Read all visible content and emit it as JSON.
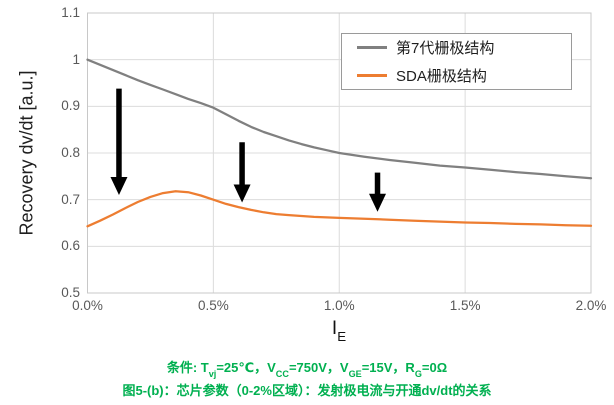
{
  "figure": {
    "y_axis": {
      "title": "Recovery dv/dt [a.u.]",
      "ticks": [
        {
          "label": "1.1",
          "value": 1.1
        },
        {
          "label": "1",
          "value": 1.0
        },
        {
          "label": "0.9",
          "value": 0.9
        },
        {
          "label": "0.8",
          "value": 0.8
        },
        {
          "label": "0.7",
          "value": 0.7
        },
        {
          "label": "0.6",
          "value": 0.6
        },
        {
          "label": "0.5",
          "value": 0.5
        }
      ]
    },
    "x_axis": {
      "title_segments": [
        {
          "t": "I"
        },
        {
          "s": "E"
        }
      ],
      "ticks": [
        {
          "label": "0.0%",
          "value": 0
        },
        {
          "label": "0.5%",
          "value": 0.5
        },
        {
          "label": "1.0%",
          "value": 1.0
        },
        {
          "label": "1.5%",
          "value": 1.5
        },
        {
          "label": "2.0%",
          "value": 2.0
        }
      ]
    },
    "legend": {
      "items": [
        {
          "label": "第7代栅极结构",
          "color": "#808080"
        },
        {
          "label": "SDA栅极结构",
          "color": "#ED7D31"
        }
      ]
    },
    "captions": {
      "conditions_segments": [
        {
          "t": "条件: T"
        },
        {
          "s": "vj"
        },
        {
          "t": "=25℃，V"
        },
        {
          "s": "CC"
        },
        {
          "t": "=750V，V"
        },
        {
          "s": "GE"
        },
        {
          "t": "=15V，R"
        },
        {
          "s": "G"
        },
        {
          "t": "=0Ω"
        }
      ],
      "figure_title": "图5-(b)：芯片参数（0-2%区域）：发射极电流与开通dv/dt的关系",
      "color": "#00B050"
    },
    "colors": {
      "grid": "#DCDCDC",
      "border": "#C8C8C8",
      "arrow": "#000000"
    }
  },
  "chart_data": {
    "type": "line",
    "title": "",
    "xlabel": "IE",
    "ylabel": "Recovery dv/dt [a.u.]",
    "xlim": [
      0,
      2
    ],
    "ylim": [
      0.5,
      1.1
    ],
    "x_unit": "%",
    "grid": true,
    "legend_position": "top-right",
    "x": [
      0,
      0.05,
      0.1,
      0.15,
      0.2,
      0.25,
      0.3,
      0.35,
      0.4,
      0.45,
      0.5,
      0.55,
      0.6,
      0.65,
      0.7,
      0.75,
      0.8,
      0.85,
      0.9,
      0.95,
      1.0,
      1.1,
      1.2,
      1.3,
      1.4,
      1.5,
      1.6,
      1.7,
      1.8,
      1.9,
      2.0
    ],
    "series": [
      {
        "name": "第7代栅极结构",
        "color": "#808080",
        "values": [
          1.0,
          0.989,
          0.978,
          0.967,
          0.956,
          0.946,
          0.936,
          0.926,
          0.916,
          0.907,
          0.897,
          0.883,
          0.869,
          0.856,
          0.845,
          0.836,
          0.827,
          0.819,
          0.812,
          0.806,
          0.8,
          0.792,
          0.785,
          0.779,
          0.773,
          0.769,
          0.764,
          0.759,
          0.755,
          0.75,
          0.746
        ]
      },
      {
        "name": "SDA栅极结构",
        "color": "#ED7D31",
        "values": [
          0.643,
          0.655,
          0.668,
          0.682,
          0.695,
          0.706,
          0.714,
          0.718,
          0.716,
          0.709,
          0.7,
          0.691,
          0.684,
          0.678,
          0.673,
          0.669,
          0.667,
          0.665,
          0.663,
          0.662,
          0.661,
          0.659,
          0.657,
          0.655,
          0.653,
          0.651,
          0.65,
          0.648,
          0.647,
          0.645,
          0.644
        ]
      }
    ],
    "arrows": [
      {
        "x": 0.125,
        "y_from": 0.938,
        "y_to": 0.71
      },
      {
        "x": 0.614,
        "y_from": 0.823,
        "y_to": 0.694
      },
      {
        "x": 1.152,
        "y_from": 0.758,
        "y_to": 0.674
      }
    ]
  }
}
